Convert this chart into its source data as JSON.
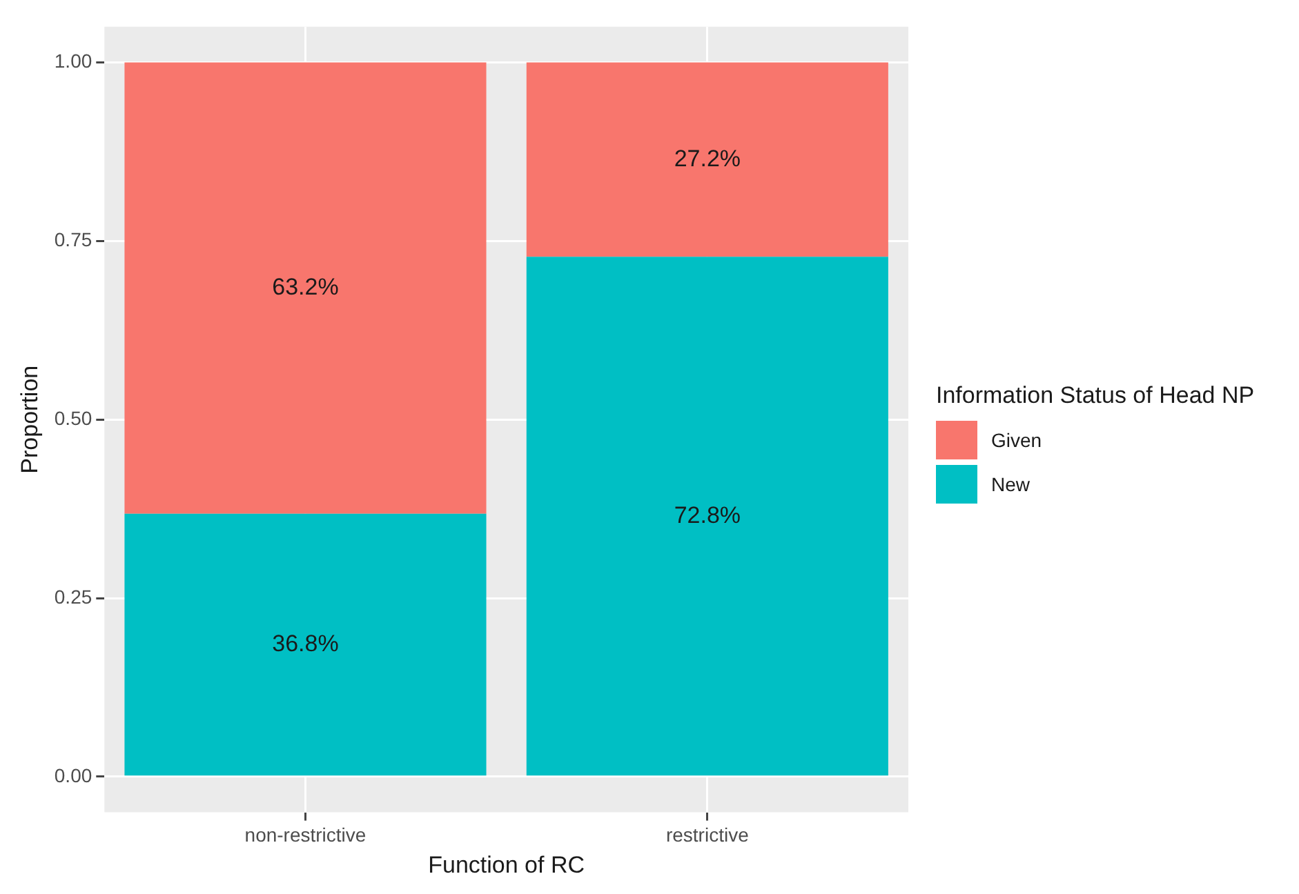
{
  "chart_data": {
    "type": "bar",
    "stacked": true,
    "xlabel": "Function of RC",
    "ylabel": "Proportion",
    "legend_title": "Information Status of Head NP",
    "legend": "right",
    "grid": true,
    "categories": [
      "non-restrictive",
      "restrictive"
    ],
    "ylim": [
      -0.05,
      1.05
    ],
    "yticks": [
      {
        "value": 0,
        "label": "0.00"
      },
      {
        "value": 0.25,
        "label": "0.25"
      },
      {
        "value": 0.5,
        "label": "0.50"
      },
      {
        "value": 0.75,
        "label": "0.75"
      },
      {
        "value": 1,
        "label": "1.00"
      }
    ],
    "series": [
      {
        "name": "New",
        "color": "#00bfc4",
        "values": [
          0.368,
          0.728
        ],
        "value_labels": [
          "36.8%",
          "72.8%"
        ]
      },
      {
        "name": "Given",
        "color": "#f8766d",
        "values": [
          0.632,
          0.272
        ],
        "value_labels": [
          "63.2%",
          "27.2%"
        ]
      }
    ]
  }
}
